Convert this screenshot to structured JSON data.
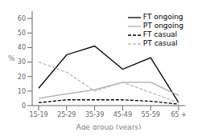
{
  "chart_data": {
    "type": "line",
    "categories": [
      "15-19",
      "25-29",
      "35-39",
      "45-49",
      "55-59",
      "65 +"
    ],
    "series": [
      {
        "name": "FT ongoing",
        "color": "#000000",
        "line_style": "solid",
        "values": [
          12,
          35,
          41,
          25,
          33,
          2
        ]
      },
      {
        "name": "PT ongoing",
        "color": "#aaaaaa",
        "line_style": "solid",
        "values": [
          5,
          8,
          11,
          16,
          16,
          7
        ]
      },
      {
        "name": "FT casual",
        "color": "#000000",
        "line_style": "dashed",
        "values": [
          2,
          4,
          4,
          4,
          3,
          1
        ]
      },
      {
        "name": "PT casual",
        "color": "#bbbbbb",
        "line_style": "dashed",
        "values": [
          30,
          23,
          10,
          16,
          9,
          2
        ]
      }
    ],
    "xlabel": "Age group (years)",
    "ylabel": "%",
    "ylim": [
      0,
      65
    ],
    "yticks": [
      0,
      10,
      20,
      30,
      40,
      50,
      60
    ],
    "legend": "upper right",
    "grid": false
  }
}
